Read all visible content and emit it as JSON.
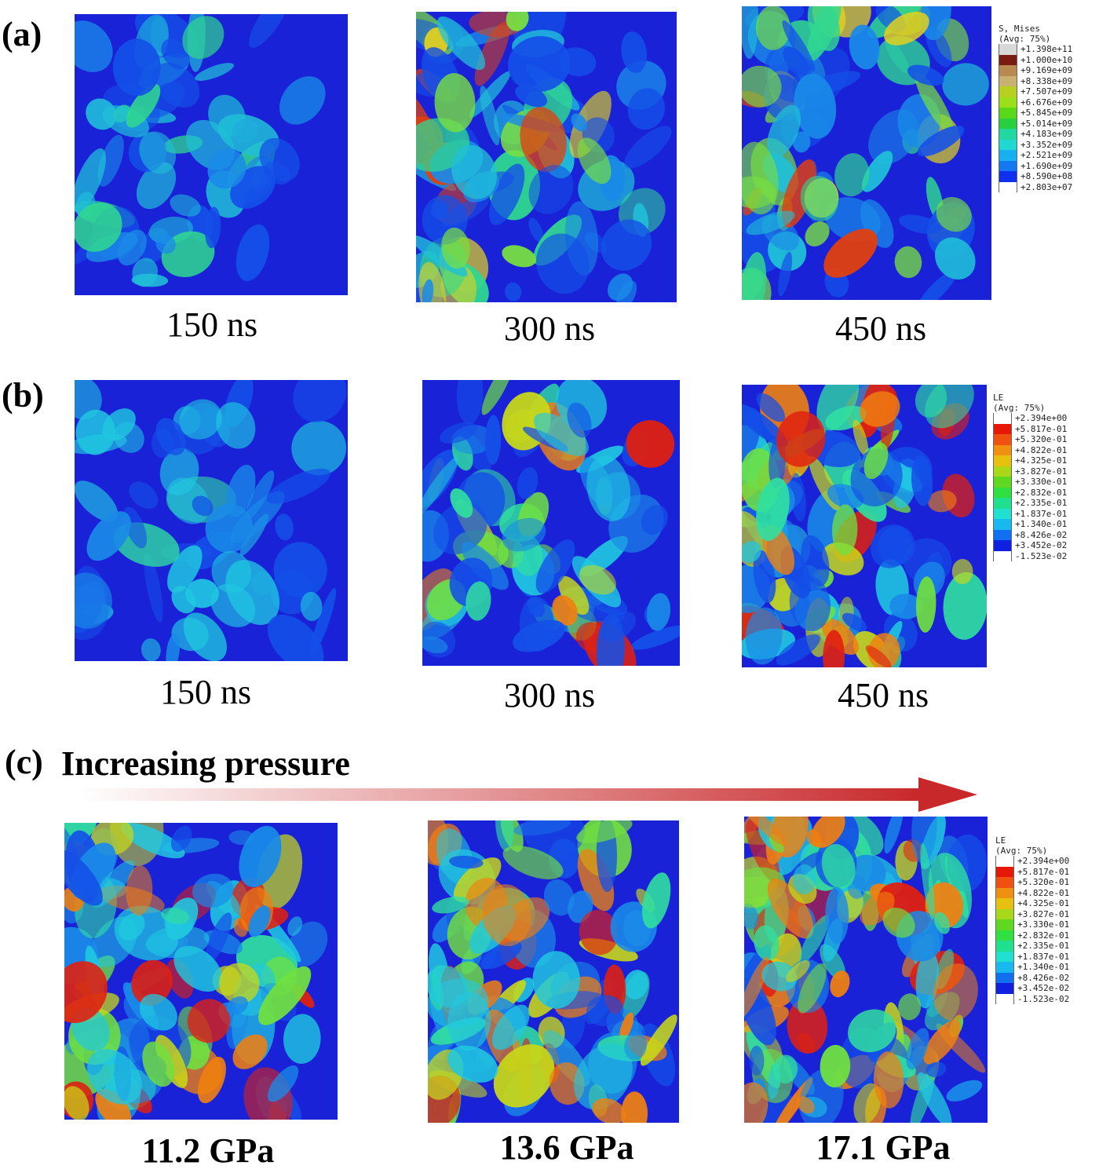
{
  "panels": {
    "a": {
      "label": "(a)",
      "times": [
        "150 ns",
        "300 ns",
        "450 ns"
      ]
    },
    "b": {
      "label": "(b)",
      "times": [
        "150 ns",
        "300 ns",
        "450 ns"
      ]
    },
    "c": {
      "label": "(c)",
      "title": "Increasing pressure",
      "pressures": [
        "11.2 GPa",
        "13.6 GPa",
        "17.1 GPa"
      ]
    }
  },
  "legend_stress": {
    "title": "S, Mises",
    "subtitle": "(Avg: 75%)",
    "values": [
      "+1.398e+11",
      "+1.000e+10",
      "+9.169e+09",
      "+8.338e+09",
      "+7.507e+09",
      "+6.676e+09",
      "+5.845e+09",
      "+5.014e+09",
      "+4.183e+09",
      "+3.352e+09",
      "+2.521e+09",
      "+1.690e+09",
      "+8.590e+08",
      "+2.803e+07"
    ],
    "colors": [
      "#d8d8d8",
      "#7a1a10",
      "#b88a50",
      "#c8b070",
      "#b8d020",
      "#9ae018",
      "#58d818",
      "#28d040",
      "#20d8a0",
      "#20d8d0",
      "#18b0f0",
      "#1478f0",
      "#1030f0"
    ]
  },
  "legend_strain_b": {
    "title": "LE",
    "subtitle": "(Avg: 75%)",
    "values": [
      "+2.394e+00",
      "+5.817e-01",
      "+5.320e-01",
      "+4.822e-01",
      "+4.325e-01",
      "+3.827e-01",
      "+3.330e-01",
      "+2.832e-01",
      "+2.335e-01",
      "+1.837e-01",
      "+1.340e-01",
      "+8.426e-02",
      "+3.452e-02",
      "-1.523e-02"
    ],
    "colors": [
      "#ffffff",
      "#e81808",
      "#f05010",
      "#f09010",
      "#e8c010",
      "#a8d818",
      "#60d820",
      "#30e040",
      "#20e090",
      "#20e0d0",
      "#18b8f0",
      "#1070f0",
      "#1020e0"
    ]
  },
  "legend_strain_c": {
    "title": "LE",
    "subtitle": "(Avg: 75%)",
    "values": [
      "+2.394e+00",
      "+5.817e-01",
      "+5.320e-01",
      "+4.822e-01",
      "+4.325e-01",
      "+3.827e-01",
      "+3.330e-01",
      "+2.832e-01",
      "+2.335e-01",
      "+1.837e-01",
      "+1.340e-01",
      "+8.426e-02",
      "+3.452e-02",
      "-1.523e-02"
    ],
    "colors": [
      "#ffffff",
      "#e81808",
      "#f05010",
      "#f09010",
      "#e8c010",
      "#a8d818",
      "#60d820",
      "#30e040",
      "#20e090",
      "#20e0d0",
      "#18b8f0",
      "#1070f0",
      "#1020e0"
    ]
  }
}
